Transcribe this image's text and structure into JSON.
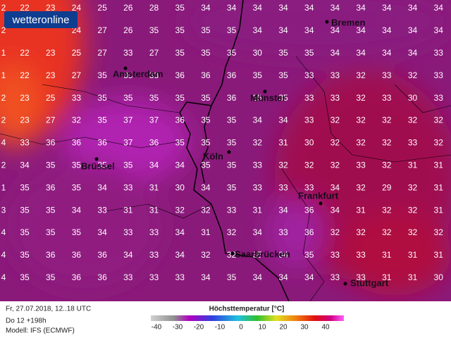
{
  "logo": "wetteronline",
  "grid": {
    "edge": [
      2,
      2,
      1,
      1,
      2,
      2,
      4,
      2,
      1,
      3,
      4,
      4,
      4
    ],
    "rows": [
      [
        22,
        23,
        24,
        25,
        26,
        28,
        35,
        34,
        34,
        34,
        34,
        34,
        34,
        34,
        34,
        34,
        34
      ],
      [
        24,
        27,
        26,
        35,
        35,
        35,
        35,
        34,
        34,
        34,
        34,
        34,
        34,
        34,
        34
      ],
      [
        22,
        23,
        25,
        27,
        33,
        27,
        35,
        35,
        35,
        30,
        35,
        35,
        34,
        34,
        34,
        34,
        33
      ],
      [
        22,
        23,
        27,
        35,
        35,
        33,
        36,
        36,
        36,
        35,
        35,
        33,
        33,
        32,
        33,
        32,
        33
      ],
      [
        23,
        25,
        33,
        35,
        35,
        35,
        35,
        35,
        36,
        35,
        35,
        33,
        33,
        32,
        33,
        30,
        33
      ],
      [
        23,
        27,
        32,
        35,
        37,
        37,
        36,
        35,
        35,
        34,
        34,
        33,
        32,
        32,
        32,
        32,
        32
      ],
      [
        33,
        36,
        36,
        36,
        37,
        36,
        35,
        35,
        35,
        32,
        31,
        30,
        32,
        32,
        32,
        33,
        32
      ],
      [
        34,
        35,
        35,
        35,
        35,
        34,
        34,
        35,
        35,
        33,
        32,
        32,
        32,
        33,
        32,
        31,
        31
      ],
      [
        35,
        36,
        35,
        34,
        33,
        31,
        30,
        34,
        35,
        33,
        33,
        33,
        34,
        32,
        29,
        32,
        31
      ],
      [
        35,
        35,
        34,
        33,
        31,
        31,
        32,
        32,
        33,
        31,
        34,
        36,
        34,
        31,
        32,
        32,
        31
      ],
      [
        35,
        35,
        35,
        34,
        33,
        33,
        34,
        31,
        32,
        34,
        33,
        36,
        32,
        32,
        32,
        32,
        32
      ],
      [
        35,
        36,
        36,
        36,
        34,
        33,
        34,
        32,
        32,
        35,
        34,
        35,
        33,
        33,
        31,
        31,
        31
      ],
      [
        35,
        35,
        36,
        36,
        33,
        33,
        33,
        34,
        35,
        34,
        34,
        34,
        33,
        33,
        31,
        31,
        30
      ]
    ]
  },
  "cities": [
    "Bremen",
    "Amsterdam",
    "Münster",
    "Köln",
    "Brüssel",
    "Frankfurt",
    "Saarbrücken",
    "Stuttgart"
  ],
  "footer": {
    "date": "Fr, 27.07.2018, 12..18 UTC",
    "run": "Do 12 +198h",
    "model": "Modell: IFS (ECMWF)",
    "legend_title": "Höchsttemperatur [°C]",
    "legend_ticks": [
      -40,
      -30,
      -20,
      -10,
      0,
      10,
      20,
      30,
      40
    ]
  }
}
